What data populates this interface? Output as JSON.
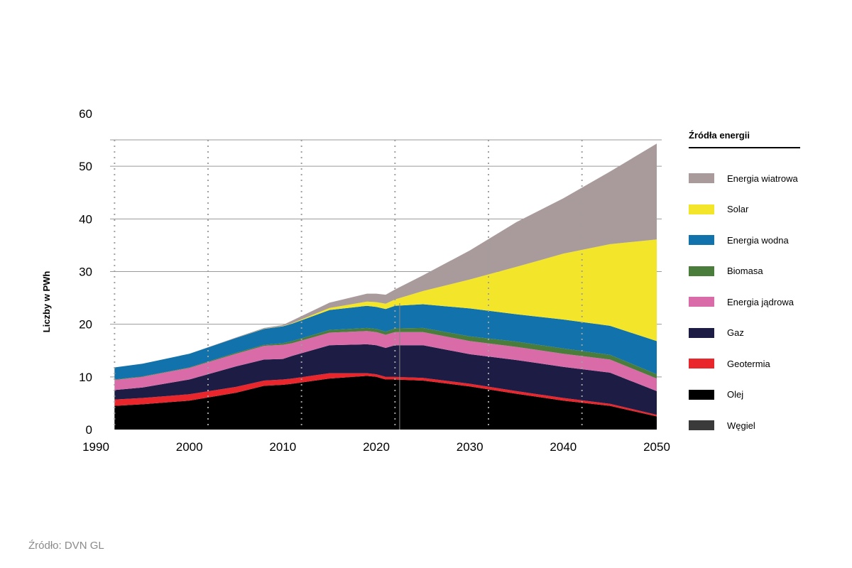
{
  "source": "Źródło: DVN GL",
  "chart_data": {
    "type": "area",
    "stacked": true,
    "ylabel": "Liczby w PWh",
    "ylim": [
      0,
      60
    ],
    "xlim": [
      1990,
      2050
    ],
    "yticks": [
      0,
      10,
      20,
      30,
      40,
      50,
      60
    ],
    "xticks": [
      1990,
      2000,
      2010,
      2020,
      2030,
      2040,
      2050
    ],
    "grid": "horizontal",
    "legend_title": "Źródła energii",
    "legend_placement": "right",
    "x": [
      1992,
      1995,
      2000,
      2005,
      2008,
      2010,
      2011,
      2015,
      2019,
      2020,
      2021,
      2022,
      2025,
      2030,
      2035,
      2040,
      2045,
      2050
    ],
    "series": [
      {
        "name": "Węgiel",
        "color": "#3a3a3a",
        "values": [
          0,
          0,
          0,
          0,
          0,
          0,
          0,
          0,
          0,
          0,
          0,
          0,
          0,
          0,
          0,
          0,
          0,
          0
        ]
      },
      {
        "name": "Olej",
        "color": "#000000",
        "values": [
          4.5,
          4.8,
          5.5,
          7.0,
          8.3,
          8.5,
          8.7,
          9.7,
          10.2,
          10.0,
          9.5,
          9.5,
          9.3,
          8.2,
          6.8,
          5.5,
          4.5,
          2.5
        ]
      },
      {
        "name": "Geotermia",
        "color": "#e8262c",
        "values": [
          1.2,
          1.2,
          1.2,
          1.1,
          1.0,
          1.0,
          1.0,
          1.0,
          0.5,
          0.5,
          0.5,
          0.5,
          0.5,
          0.5,
          0.5,
          0.5,
          0.4,
          0.3
        ]
      },
      {
        "name": "Gaz",
        "color": "#1c1c45",
        "values": [
          1.8,
          2.0,
          2.8,
          3.9,
          4.0,
          3.9,
          4.3,
          5.3,
          5.5,
          5.5,
          5.5,
          6.0,
          6.2,
          5.6,
          5.9,
          5.9,
          5.9,
          4.5
        ]
      },
      {
        "name": "Energia jądrowa",
        "color": "#d96ba8",
        "values": [
          1.9,
          2.0,
          2.2,
          2.4,
          2.6,
          2.7,
          2.4,
          2.4,
          2.5,
          2.5,
          2.5,
          2.5,
          2.5,
          2.5,
          2.5,
          2.5,
          2.5,
          2.4
        ]
      },
      {
        "name": "Biomasa",
        "color": "#4a7c3c",
        "values": [
          0.1,
          0.1,
          0.1,
          0.2,
          0.2,
          0.3,
          0.4,
          0.5,
          0.6,
          0.6,
          0.6,
          0.7,
          0.8,
          0.9,
          1.0,
          1.0,
          0.9,
          0.8
        ]
      },
      {
        "name": "Energia wodna",
        "color": "#1272ab",
        "values": [
          2.3,
          2.4,
          2.6,
          2.8,
          3.0,
          3.2,
          3.3,
          3.8,
          4.2,
          4.2,
          4.3,
          4.3,
          4.5,
          5.3,
          5.2,
          5.5,
          5.5,
          6.3
        ]
      },
      {
        "name": "Solar",
        "color": "#f2e52a",
        "values": [
          0,
          0,
          0,
          0,
          0.05,
          0.05,
          0.1,
          0.4,
          0.8,
          0.9,
          1.0,
          1.2,
          2.5,
          5.5,
          9.0,
          12.5,
          15.5,
          19.3
        ]
      },
      {
        "name": "Energia wiatrowa",
        "color": "#a99b9b",
        "values": [
          0,
          0,
          0,
          0.1,
          0.15,
          0.2,
          0.5,
          1.0,
          1.5,
          1.6,
          1.7,
          1.9,
          3.0,
          5.5,
          8.5,
          10.5,
          13.8,
          18.2
        ]
      }
    ]
  }
}
